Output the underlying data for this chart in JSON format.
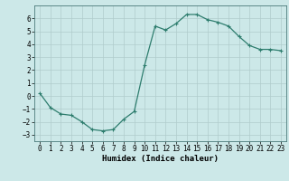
{
  "x": [
    0,
    1,
    2,
    3,
    4,
    5,
    6,
    7,
    8,
    9,
    10,
    11,
    12,
    13,
    14,
    15,
    16,
    17,
    18,
    19,
    20,
    21,
    22,
    23
  ],
  "y": [
    0.2,
    -0.9,
    -1.4,
    -1.5,
    -2.0,
    -2.6,
    -2.7,
    -2.6,
    -1.8,
    -1.2,
    2.4,
    5.4,
    5.1,
    5.6,
    6.3,
    6.3,
    5.9,
    5.7,
    5.4,
    4.6,
    3.9,
    3.6,
    3.6,
    3.5
  ],
  "line_color": "#2e7d6e",
  "bg_color": "#cce8e8",
  "grid_color": "#b0cccc",
  "xlabel": "Humidex (Indice chaleur)",
  "xlim": [
    -0.5,
    23.5
  ],
  "ylim": [
    -3.5,
    7.0
  ],
  "yticks": [
    -3,
    -2,
    -1,
    0,
    1,
    2,
    3,
    4,
    5,
    6
  ],
  "xticks": [
    0,
    1,
    2,
    3,
    4,
    5,
    6,
    7,
    8,
    9,
    10,
    11,
    12,
    13,
    14,
    15,
    16,
    17,
    18,
    19,
    20,
    21,
    22,
    23
  ],
  "tick_fontsize": 5.5,
  "xlabel_fontsize": 6.5,
  "marker": "+",
  "marker_size": 3.5,
  "line_width": 0.9
}
